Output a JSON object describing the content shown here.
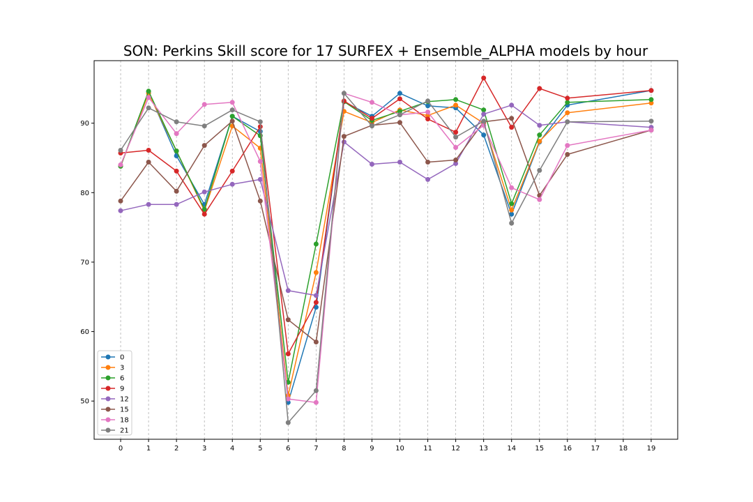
{
  "chart_data": {
    "type": "line",
    "title": "SON: Perkins Skill score for 17 SURFEX + Ensemble_ALPHA models by hour",
    "xlabel": "",
    "ylabel": "",
    "x_ticks": [
      0,
      1,
      2,
      3,
      4,
      5,
      6,
      7,
      8,
      9,
      10,
      11,
      12,
      13,
      14,
      15,
      16,
      17,
      18,
      19
    ],
    "y_ticks": [
      50,
      60,
      70,
      80,
      90
    ],
    "xlim": [
      -0.95,
      19.95
    ],
    "ylim": [
      44.5,
      99.0
    ],
    "grid": "vertical dashed",
    "legend_position": "bottom-left",
    "x": [
      0,
      1,
      2,
      3,
      4,
      5,
      6,
      7,
      8,
      9,
      10,
      11,
      12,
      13,
      14,
      15,
      16,
      19
    ],
    "series": [
      {
        "name": "0",
        "color": "#1f77b4",
        "values": [
          83.8,
          94.5,
          85.3,
          78.3,
          91.0,
          88.8,
          49.8,
          63.5,
          93.1,
          91.0,
          94.3,
          92.5,
          92.2,
          88.3,
          76.9,
          87.3,
          92.6,
          94.7
        ]
      },
      {
        "name": "3",
        "color": "#ff7f0e",
        "values": [
          83.8,
          94.3,
          86.0,
          77.4,
          89.6,
          86.4,
          50.8,
          68.5,
          91.7,
          90.1,
          91.9,
          91.1,
          92.6,
          90.0,
          77.5,
          87.4,
          91.5,
          92.9
        ]
      },
      {
        "name": "6",
        "color": "#2ca02c",
        "values": [
          83.8,
          94.6,
          86.0,
          77.6,
          91.0,
          88.2,
          52.7,
          72.6,
          93.1,
          90.4,
          91.7,
          93.1,
          93.4,
          91.9,
          78.4,
          88.3,
          93.0,
          93.4
        ]
      },
      {
        "name": "9",
        "color": "#d62728",
        "values": [
          85.7,
          86.1,
          83.1,
          76.9,
          83.1,
          89.5,
          56.8,
          64.2,
          93.2,
          90.7,
          93.5,
          90.6,
          88.7,
          96.5,
          89.4,
          95.0,
          93.6,
          94.7
        ]
      },
      {
        "name": "12",
        "color": "#9467bd",
        "values": [
          77.4,
          78.3,
          78.3,
          80.1,
          81.2,
          81.9,
          65.9,
          65.2,
          87.3,
          84.1,
          84.4,
          81.9,
          84.2,
          91.3,
          92.6,
          89.7,
          90.2,
          89.4
        ]
      },
      {
        "name": "15",
        "color": "#8c564b",
        "values": [
          78.8,
          84.4,
          80.2,
          86.8,
          90.3,
          78.8,
          61.7,
          58.5,
          88.1,
          89.7,
          90.1,
          84.4,
          84.7,
          90.2,
          90.7,
          79.6,
          85.5,
          89.0
        ]
      },
      {
        "name": "18",
        "color": "#e377c2",
        "values": [
          84.0,
          93.7,
          88.5,
          92.7,
          93.0,
          84.5,
          50.3,
          49.8,
          94.3,
          93.0,
          91.2,
          91.6,
          86.5,
          89.7,
          80.7,
          79.0,
          86.8,
          89.0
        ]
      },
      {
        "name": "21",
        "color": "#7f7f7f",
        "values": [
          86.1,
          92.2,
          90.2,
          89.6,
          91.9,
          90.2,
          46.9,
          51.5,
          94.3,
          89.6,
          91.2,
          93.2,
          88.0,
          90.3,
          75.6,
          83.2,
          90.2,
          90.3
        ]
      }
    ]
  }
}
